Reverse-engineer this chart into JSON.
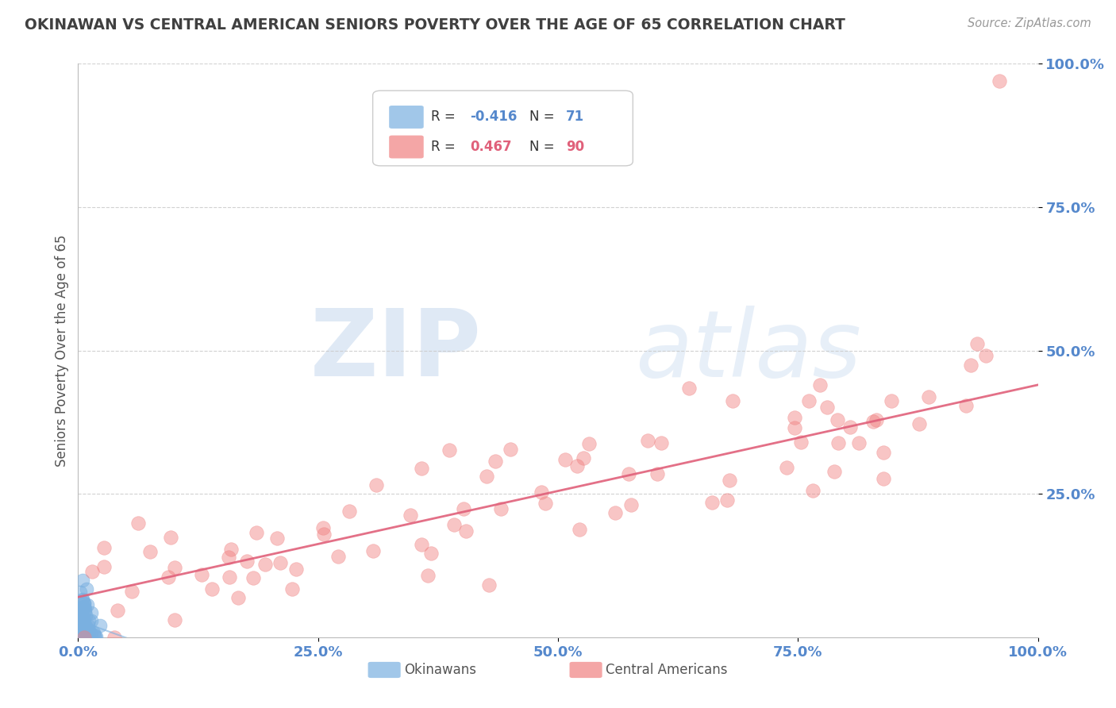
{
  "title": "OKINAWAN VS CENTRAL AMERICAN SENIORS POVERTY OVER THE AGE OF 65 CORRELATION CHART",
  "source": "Source: ZipAtlas.com",
  "ylabel": "Seniors Poverty Over the Age of 65",
  "xlim": [
    0.0,
    1.0
  ],
  "ylim": [
    0.0,
    1.0
  ],
  "xtick_labels": [
    "0.0%",
    "25.0%",
    "50.0%",
    "75.0%",
    "100.0%"
  ],
  "xtick_vals": [
    0.0,
    0.25,
    0.5,
    0.75,
    1.0
  ],
  "ytick_labels": [
    "25.0%",
    "50.0%",
    "75.0%",
    "100.0%"
  ],
  "ytick_vals": [
    0.25,
    0.5,
    0.75,
    1.0
  ],
  "okinawan_R": -0.416,
  "okinawan_N": 71,
  "central_american_R": 0.467,
  "central_american_N": 90,
  "okinawan_color": "#7ab0e0",
  "central_american_color": "#f08080",
  "okinawan_line_color": "#7ab0e0",
  "central_american_line_color": "#e0607a",
  "watermark_zip": "ZIP",
  "watermark_atlas": "atlas",
  "background_color": "#ffffff",
  "grid_color": "#cccccc",
  "title_color": "#404040",
  "axis_label_color": "#555555",
  "tick_label_color": "#5588cc",
  "legend_text_color": "#333333",
  "seed": 99
}
